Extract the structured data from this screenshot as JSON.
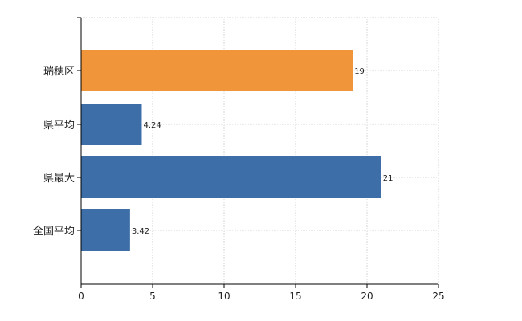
{
  "chart_data": {
    "type": "bar",
    "orientation": "horizontal",
    "categories": [
      "瑞穂区",
      "県平均",
      "県最大",
      "全国平均"
    ],
    "values": [
      19,
      4.24,
      21,
      3.42
    ],
    "data_labels": [
      "19",
      "4.24",
      "21",
      "3.42"
    ],
    "bar_colors": [
      "#f0953a",
      "#3d6ea8",
      "#3d6ea8",
      "#3d6ea8"
    ],
    "title": "",
    "xlabel": "",
    "ylabel": "",
    "xlim": [
      0,
      25
    ],
    "xticks": [
      0,
      5,
      10,
      15,
      20,
      25
    ],
    "xtick_labels": [
      "0",
      "5",
      "10",
      "15",
      "20",
      "25"
    ],
    "grid": true,
    "legend": "none"
  }
}
